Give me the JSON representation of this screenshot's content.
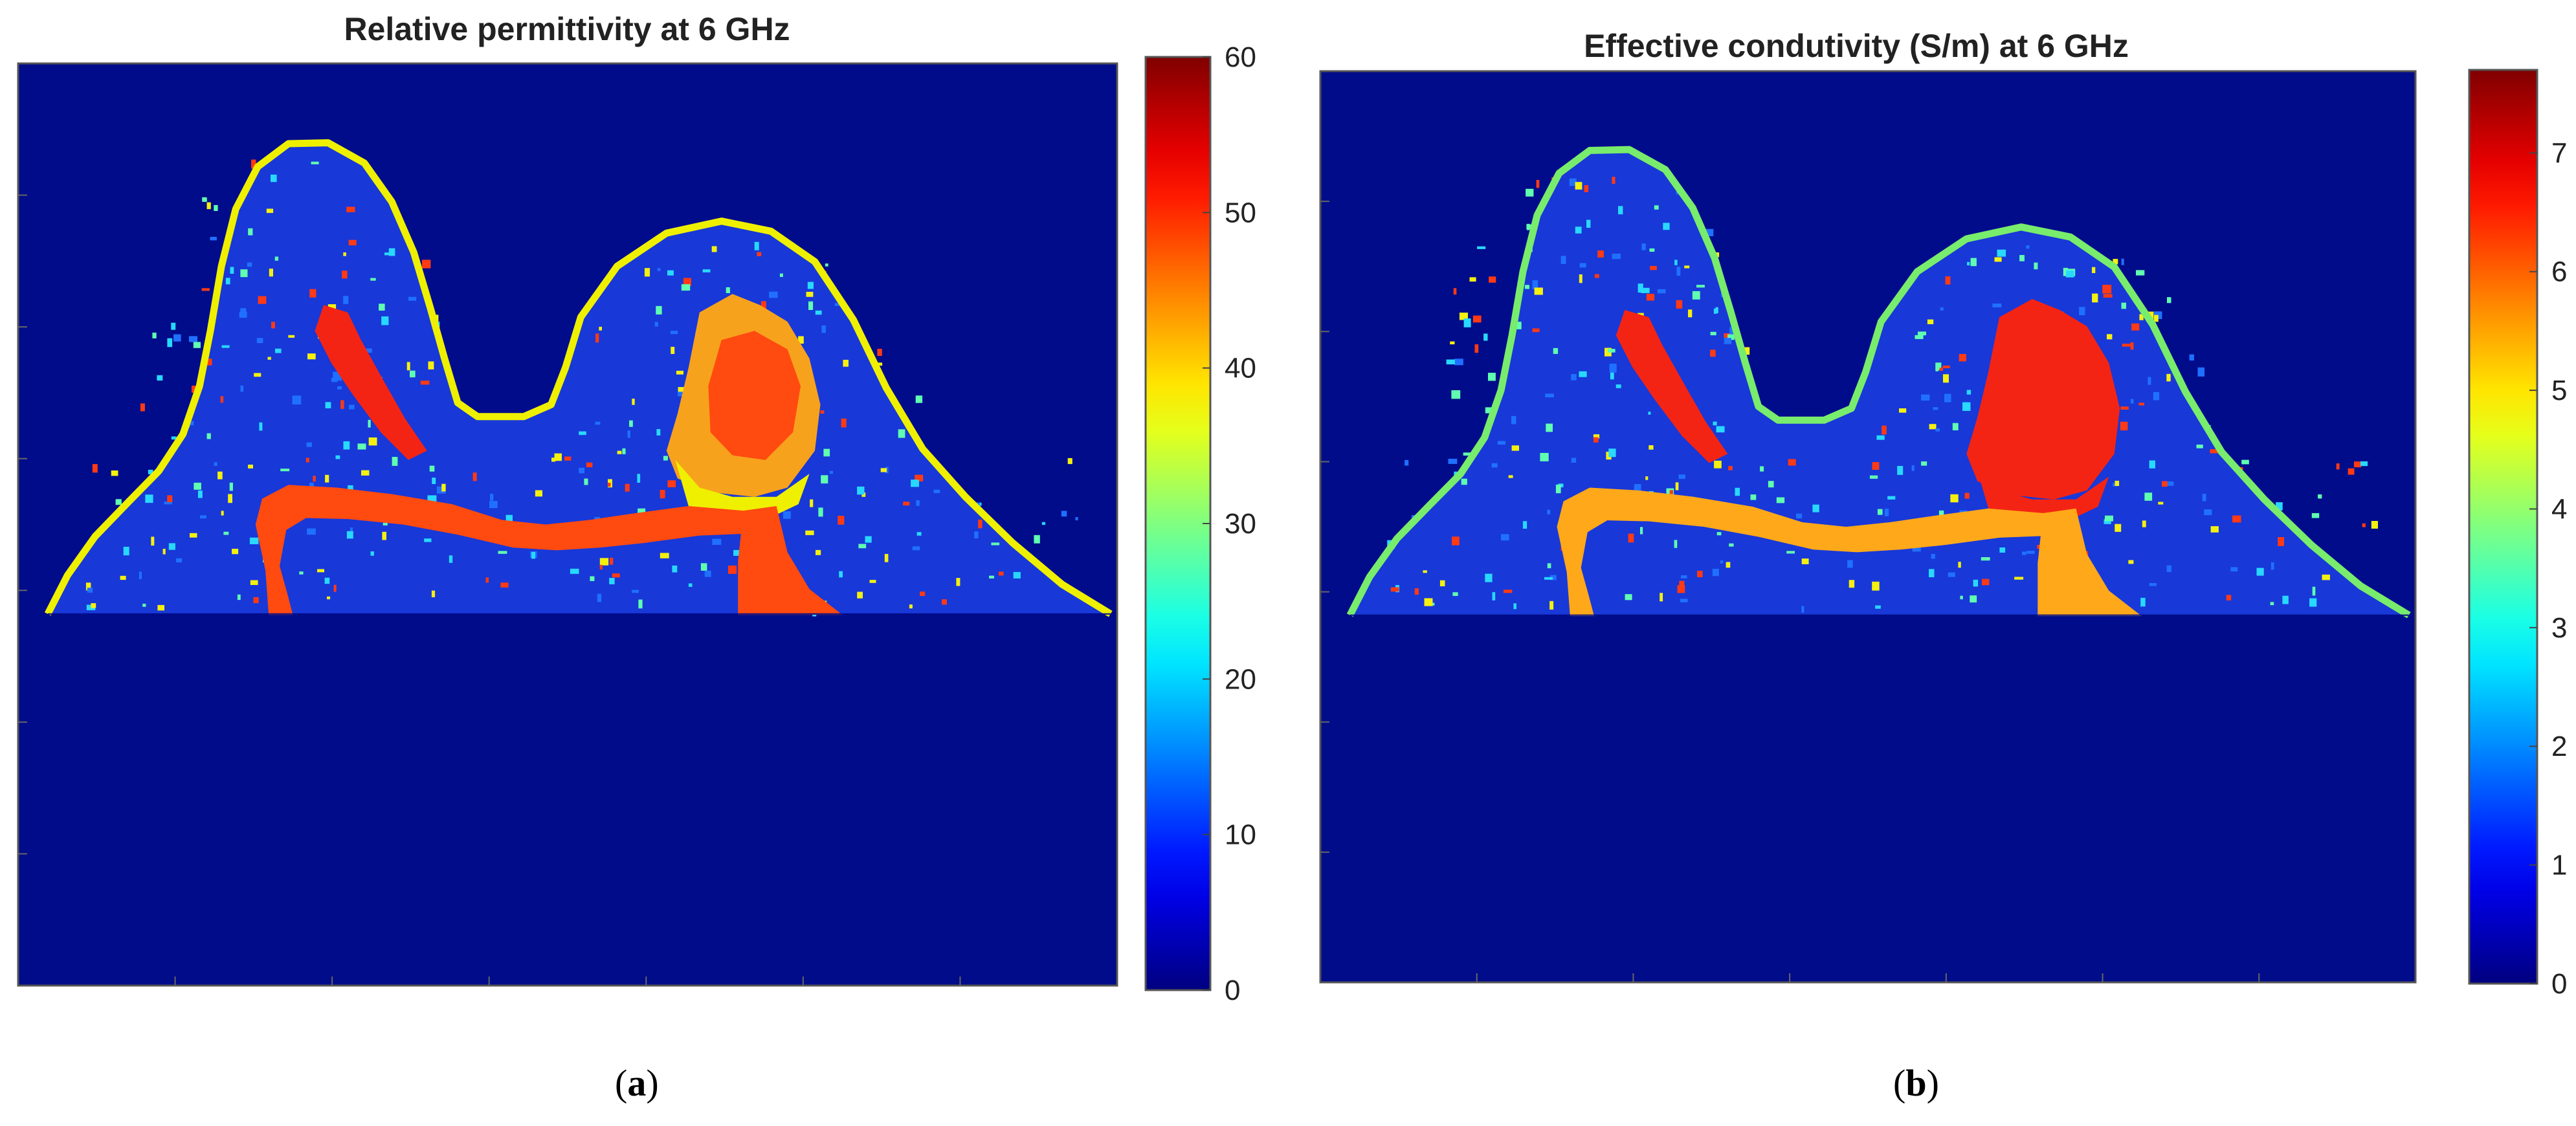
{
  "chart_data": [
    {
      "type": "heatmap",
      "title": "Relative permittivity at 6 GHz",
      "xlabel": "",
      "ylabel": "",
      "colorbar": {
        "range": [
          0,
          60
        ],
        "ticks": [
          0,
          10,
          20,
          30,
          40,
          50,
          60
        ],
        "tick_labels": [
          "0",
          "10",
          "20",
          "30",
          "40",
          "50",
          "60"
        ]
      },
      "regions": [
        {
          "tissue_value": 1,
          "color": "#000c8a"
        },
        {
          "tissue_value": 5,
          "color": "#1838d8"
        },
        {
          "tissue_value": 38,
          "color": "#eef000"
        },
        {
          "tissue_value": 46,
          "color": "#f7a21c"
        },
        {
          "tissue_value": 52,
          "color": "#ff4a10"
        },
        {
          "tissue_value": 55,
          "color": "#f42414"
        }
      ],
      "grid": false,
      "legend": "none",
      "panel_label": {
        "open": "(",
        "letter": "a",
        "close": ")"
      }
    },
    {
      "type": "heatmap",
      "title": "Effective condutivity (S/m) at 6 GHz",
      "xlabel": "",
      "ylabel": "",
      "colorbar": {
        "range": [
          0,
          7.7
        ],
        "ticks": [
          0,
          1,
          2,
          3,
          4,
          5,
          6,
          7
        ],
        "tick_labels": [
          "0",
          "1",
          "2",
          "3",
          "4",
          "5",
          "6",
          "7"
        ]
      },
      "regions": [
        {
          "tissue_value": 0.2,
          "color": "#000c8a"
        },
        {
          "tissue_value": 0.9,
          "color": "#1838d8"
        },
        {
          "tissue_value": 4.1,
          "color": "#78ec6c"
        },
        {
          "tissue_value": 5.8,
          "color": "#ffa81a"
        },
        {
          "tissue_value": 6.6,
          "color": "#f42414"
        }
      ],
      "grid": false,
      "legend": "none",
      "panel_label": {
        "open": "(",
        "letter": "b",
        "close": ")"
      }
    }
  ]
}
